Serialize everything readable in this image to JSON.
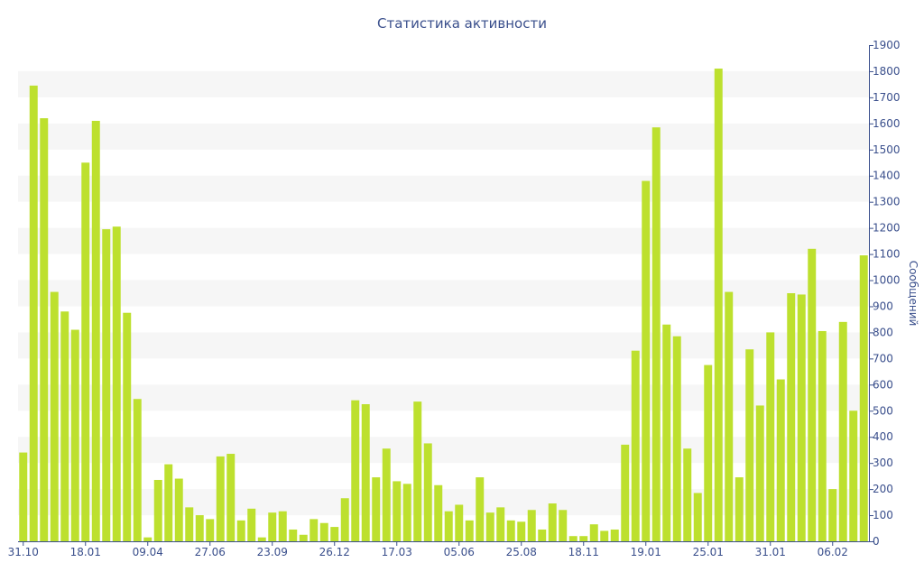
{
  "chart_data": {
    "type": "bar",
    "title": "Статистика активности",
    "ylabel": "Сообщений",
    "ylim": [
      0,
      1900
    ],
    "yticks": [
      0,
      100,
      200,
      300,
      400,
      500,
      600,
      700,
      800,
      900,
      1000,
      1100,
      1200,
      1300,
      1400,
      1500,
      1600,
      1700,
      1800,
      1900
    ],
    "x_tick_labels": [
      "31.10",
      "18.01",
      "09.04",
      "27.06",
      "23.09",
      "26.12",
      "17.03",
      "05.06",
      "25.08",
      "18.11",
      "19.01",
      "25.01",
      "31.01",
      "06.02"
    ],
    "x_tick_label_bar_index": [
      0,
      6,
      12,
      18,
      24,
      30,
      36,
      42,
      48,
      54,
      60,
      66,
      72,
      78
    ],
    "y_axis_position": "right",
    "grid": "alternating horizontal bands",
    "legend": "none",
    "colors": {
      "bar": "#bde02e",
      "text": "#3a4f8c",
      "band": "#f6f6f6"
    },
    "values": [
      340,
      1745,
      1620,
      955,
      880,
      810,
      1450,
      1610,
      1195,
      1205,
      875,
      545,
      15,
      235,
      295,
      240,
      130,
      100,
      85,
      325,
      335,
      80,
      125,
      15,
      110,
      115,
      45,
      25,
      85,
      70,
      55,
      165,
      540,
      525,
      245,
      355,
      230,
      220,
      535,
      375,
      215,
      115,
      140,
      80,
      245,
      110,
      130,
      80,
      75,
      120,
      45,
      145,
      120,
      20,
      20,
      65,
      40,
      45,
      370,
      730,
      1380,
      1585,
      830,
      785,
      355,
      185,
      675,
      1810,
      955,
      245,
      735,
      520,
      800,
      620,
      950,
      945,
      1120,
      805,
      200,
      840,
      500,
      1095
    ]
  }
}
